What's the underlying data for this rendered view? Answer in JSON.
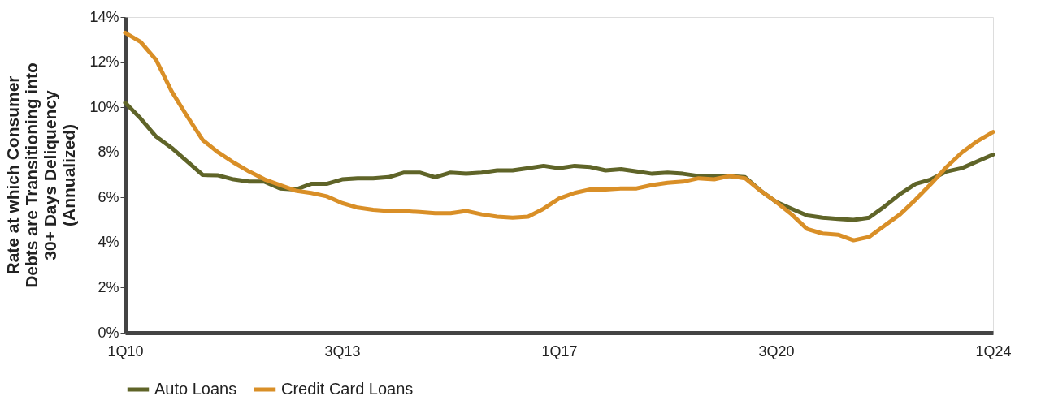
{
  "chart_data": {
    "type": "line",
    "ylabel": "Rate at which Consumer\nDebts are Transitioning into\n30+ Days Deliquency\n(Annualized)",
    "categories": [
      "1Q10",
      null,
      null,
      null,
      null,
      null,
      null,
      null,
      null,
      null,
      null,
      null,
      null,
      null,
      "3Q13",
      null,
      null,
      null,
      null,
      null,
      null,
      null,
      null,
      null,
      null,
      null,
      null,
      null,
      "1Q17",
      null,
      null,
      null,
      null,
      null,
      null,
      null,
      null,
      null,
      null,
      null,
      null,
      null,
      "3Q20",
      null,
      null,
      null,
      null,
      null,
      null,
      null,
      null,
      null,
      null,
      null,
      null,
      null,
      "1Q24"
    ],
    "series": [
      {
        "name": "Auto Loans",
        "color": "#5f6428",
        "values": [
          10.2,
          9.5,
          8.7,
          8.2,
          7.6,
          7.0,
          6.98,
          6.8,
          6.7,
          6.7,
          6.4,
          6.35,
          6.6,
          6.6,
          6.8,
          6.85,
          6.85,
          6.9,
          7.1,
          7.1,
          6.9,
          7.1,
          7.05,
          7.1,
          7.2,
          7.2,
          7.3,
          7.4,
          7.3,
          7.4,
          7.35,
          7.2,
          7.25,
          7.15,
          7.05,
          7.1,
          7.05,
          6.95,
          6.95,
          6.95,
          6.9,
          6.3,
          5.8,
          5.5,
          5.2,
          5.1,
          5.05,
          5.0,
          5.1,
          5.6,
          6.15,
          6.6,
          6.8,
          7.15,
          7.3,
          7.6,
          7.9
        ]
      },
      {
        "name": "Credit Card Loans",
        "color": "#d98f27",
        "values": [
          13.3,
          12.9,
          12.1,
          10.7,
          9.6,
          8.55,
          8.0,
          7.55,
          7.15,
          6.8,
          6.55,
          6.3,
          6.2,
          6.05,
          5.75,
          5.55,
          5.45,
          5.4,
          5.4,
          5.35,
          5.3,
          5.3,
          5.4,
          5.25,
          5.15,
          5.1,
          5.15,
          5.5,
          5.95,
          6.2,
          6.35,
          6.35,
          6.4,
          6.4,
          6.55,
          6.65,
          6.7,
          6.85,
          6.8,
          6.95,
          6.85,
          6.3,
          5.8,
          5.25,
          4.6,
          4.4,
          4.35,
          4.1,
          4.25,
          4.75,
          5.25,
          5.9,
          6.6,
          7.35,
          8.0,
          8.5,
          8.9
        ]
      }
    ],
    "ylim": [
      0,
      14
    ],
    "yticks": [
      {
        "value": 0,
        "label": "0%"
      },
      {
        "value": 2,
        "label": "2%"
      },
      {
        "value": 4,
        "label": "4%"
      },
      {
        "value": 6,
        "label": "6%"
      },
      {
        "value": 8,
        "label": "8%"
      },
      {
        "value": 10,
        "label": "10%"
      },
      {
        "value": 12,
        "label": "12%"
      },
      {
        "value": 14,
        "label": "14%"
      }
    ],
    "grid": false,
    "legend": "bottom",
    "marker": "none",
    "line_style": "solid"
  }
}
